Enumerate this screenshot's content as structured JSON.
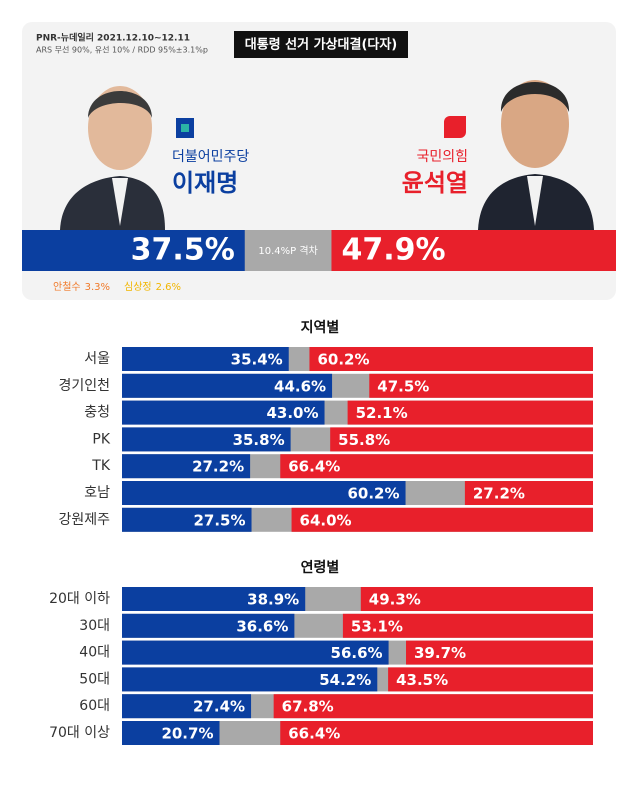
{
  "header": {
    "source": "PNR-뉴데일리  2021.12.10~12.11",
    "method": "ARS 무선 90%, 유선 10% / RDD 95%±3.1%p",
    "title": "대통령 선거 가상대결(다자)",
    "xlim": [
      0,
      100
    ],
    "candidates": [
      {
        "party": "더불어민주당",
        "name": "이재명",
        "value": 37.5,
        "value_label": "37.5%",
        "color": "#0b3fa0"
      },
      {
        "party": "국민의힘",
        "name": "윤석열",
        "value": 47.9,
        "value_label": "47.9%",
        "color": "#e8202b"
      }
    ],
    "gap_label": "10.4%P 격차",
    "others": [
      {
        "name": "안철수",
        "value": 3.3,
        "value_label": "3.3%",
        "color": "#f07a2a"
      },
      {
        "name": "심상정",
        "value": 2.6,
        "value_label": "2.6%",
        "color": "#f2b600"
      }
    ]
  },
  "chart_data": [
    {
      "type": "bar",
      "title": "지역별",
      "categories": [
        "서울",
        "경기인천",
        "충청",
        "PK",
        "TK",
        "호남",
        "강원제주"
      ],
      "xlim": [
        0,
        100
      ],
      "series": [
        {
          "color": "#0b3fa0",
          "values": [
            35.4,
            44.6,
            43.0,
            35.8,
            27.2,
            60.2,
            27.5
          ],
          "value_labels": [
            "35.4%",
            "44.6%",
            "43.0%",
            "35.8%",
            "27.2%",
            "60.2%",
            "27.5%"
          ]
        },
        {
          "color": "#e8202b",
          "values": [
            60.2,
            47.5,
            52.1,
            55.8,
            66.4,
            27.2,
            64.0
          ],
          "value_labels": [
            "60.2%",
            "47.5%",
            "52.1%",
            "55.8%",
            "66.4%",
            "27.2%",
            "64.0%"
          ]
        }
      ]
    },
    {
      "type": "bar",
      "title": "연령별",
      "categories": [
        "20대 이하",
        "30대",
        "40대",
        "50대",
        "60대",
        "70대 이상"
      ],
      "xlim": [
        0,
        100
      ],
      "series": [
        {
          "color": "#0b3fa0",
          "values": [
            38.9,
            36.6,
            56.6,
            54.2,
            27.4,
            20.7
          ],
          "value_labels": [
            "38.9%",
            "36.6%",
            "56.6%",
            "54.2%",
            "27.4%",
            "20.7%"
          ]
        },
        {
          "color": "#e8202b",
          "values": [
            49.3,
            53.1,
            39.7,
            43.5,
            67.8,
            66.4
          ],
          "value_labels": [
            "49.3%",
            "53.1%",
            "39.7%",
            "43.5%",
            "67.8%",
            "66.4%"
          ]
        }
      ]
    }
  ]
}
